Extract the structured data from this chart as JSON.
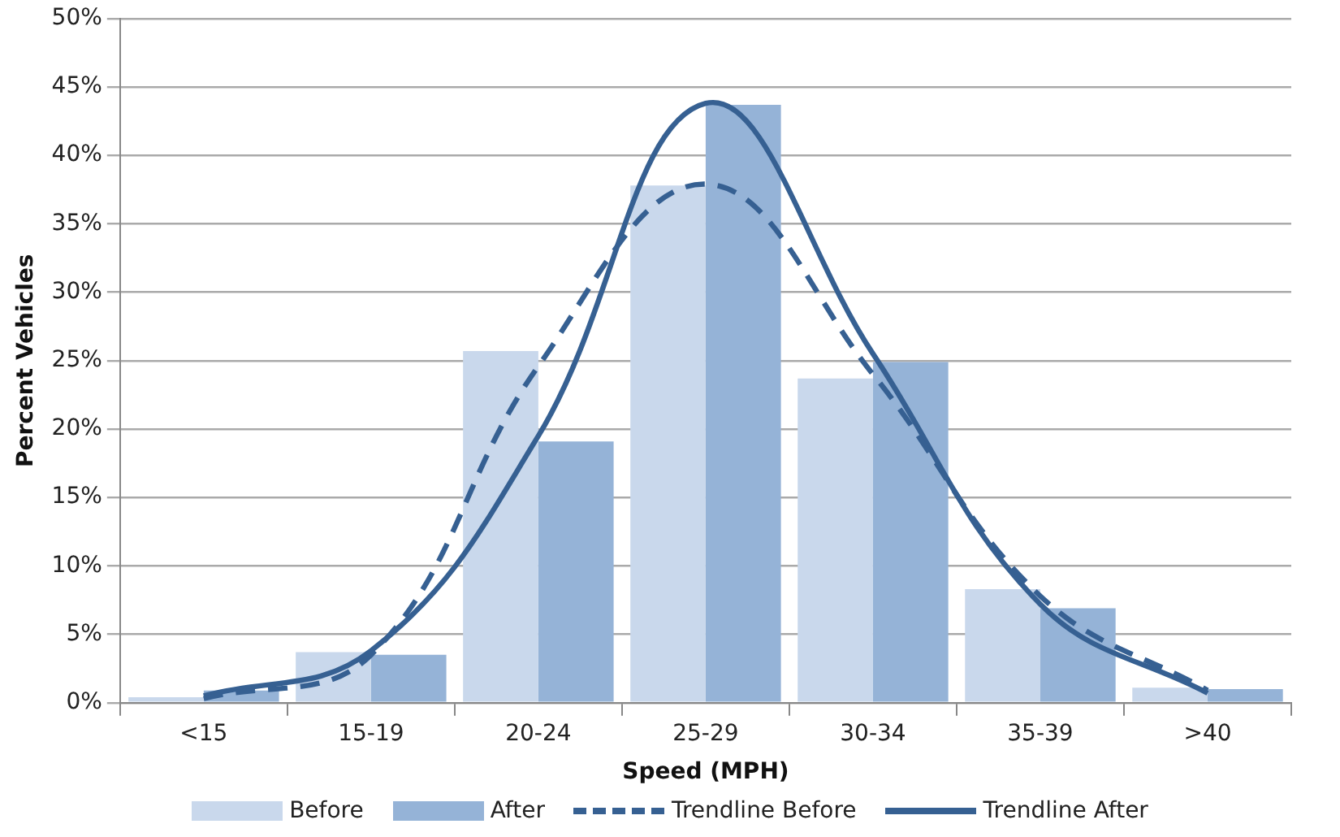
{
  "chart_data": {
    "type": "bar",
    "xlabel": "Speed (MPH)",
    "ylabel": "Percent Vehicles",
    "categories": [
      "<15",
      "15-19",
      "20-24",
      "25-29",
      "30-34",
      "35-39",
      ">40"
    ],
    "series": [
      {
        "name": "Before",
        "color": "#c9d8ec",
        "values": [
          0.4,
          3.7,
          25.7,
          37.8,
          23.7,
          8.3,
          1.1
        ]
      },
      {
        "name": "After",
        "color": "#95b3d7",
        "values": [
          0.9,
          3.5,
          19.1,
          43.7,
          24.9,
          6.9,
          1.0
        ]
      },
      {
        "name": "Trendline Before",
        "type": "line",
        "line_style": "dashed",
        "color": "#366092",
        "values": [
          0.3,
          3.5,
          24.6,
          37.9,
          24,
          7.8,
          0.9
        ]
      },
      {
        "name": "Trendline After",
        "type": "line",
        "line_style": "solid",
        "color": "#366092",
        "values": [
          0.5,
          3.8,
          19.5,
          43.8,
          25.5,
          7.2,
          0.7
        ]
      }
    ],
    "ylim": [
      0,
      50
    ],
    "yticks": [
      {
        "value": 0,
        "label": "0%"
      },
      {
        "value": 5,
        "label": "5%"
      },
      {
        "value": 10,
        "label": "10%"
      },
      {
        "value": 15,
        "label": "15%"
      },
      {
        "value": 20,
        "label": "20%"
      },
      {
        "value": 25,
        "label": "25%"
      },
      {
        "value": 30,
        "label": "30%"
      },
      {
        "value": 35,
        "label": "35%"
      },
      {
        "value": 40,
        "label": "40%"
      },
      {
        "value": 45,
        "label": "45%"
      },
      {
        "value": 50,
        "label": "50%"
      }
    ],
    "grid": "y",
    "legend": "bottom",
    "marker": "none"
  }
}
